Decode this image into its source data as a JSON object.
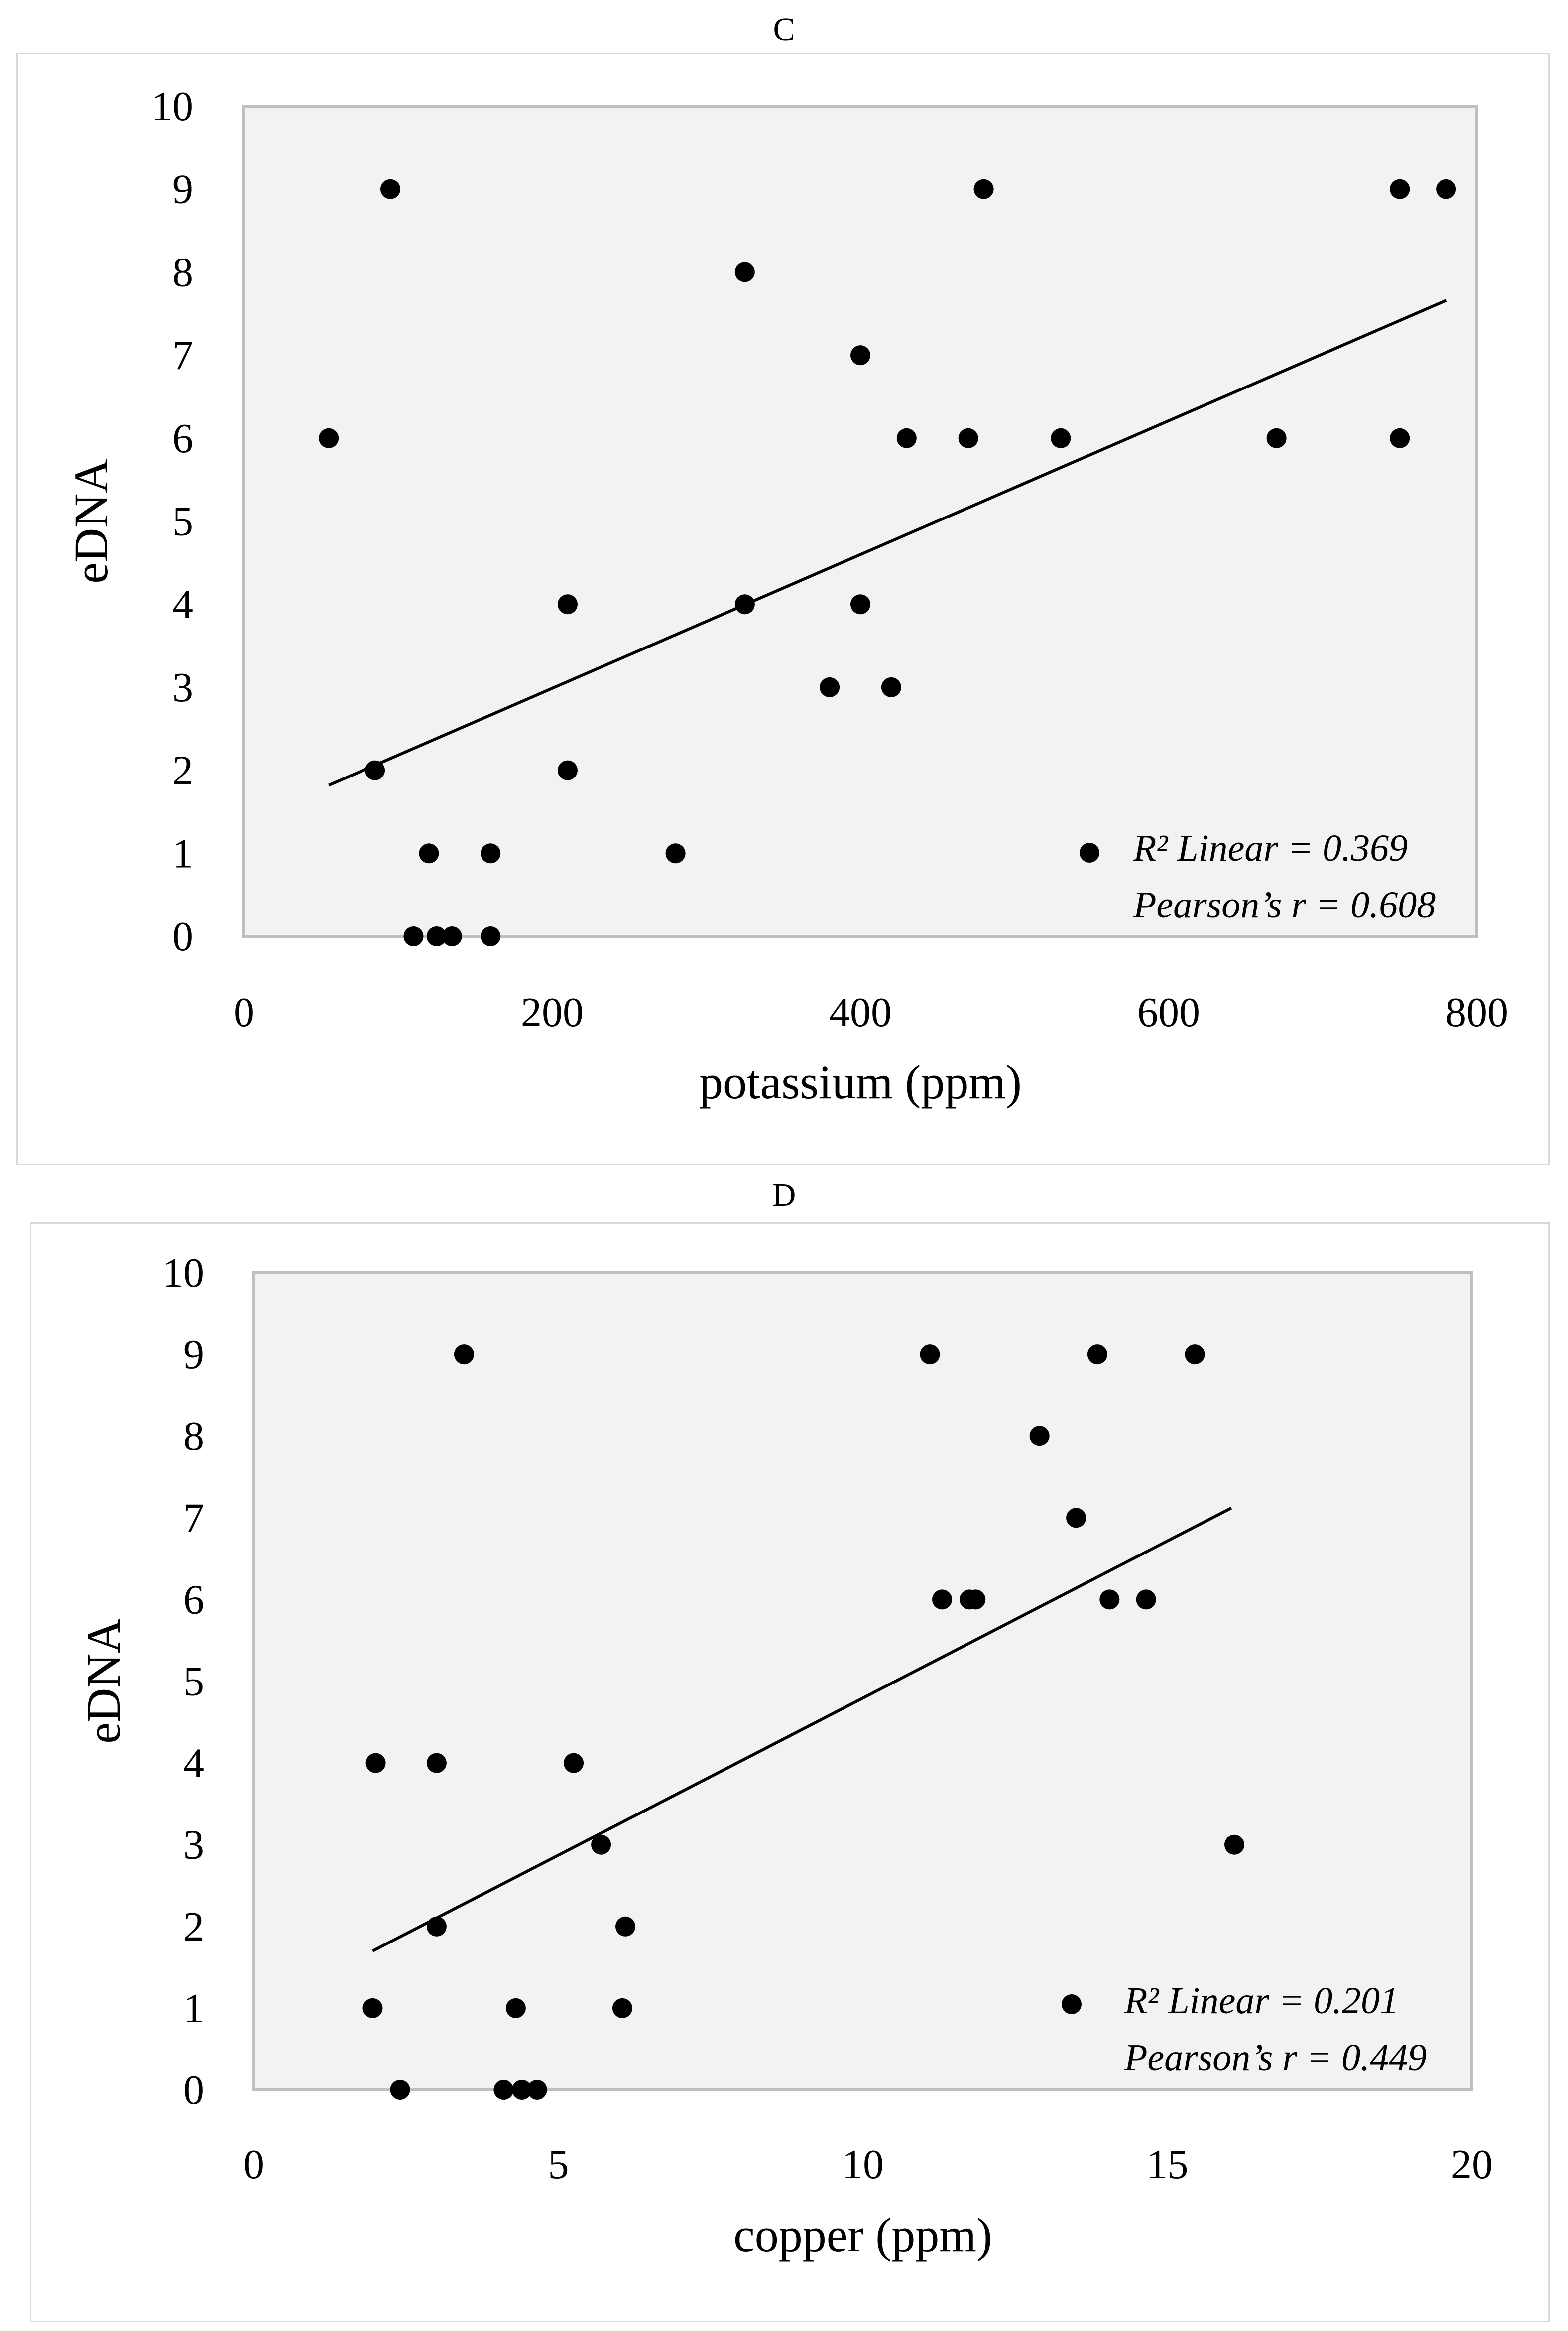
{
  "chart_data": [
    {
      "type": "scatter",
      "title": "C",
      "xlabel": "potassium (ppm)",
      "ylabel": "eDNA",
      "xlim": [
        0,
        800
      ],
      "ylim": [
        0,
        10
      ],
      "xticks": [
        0,
        200,
        400,
        600,
        800
      ],
      "yticks": [
        0,
        1,
        2,
        3,
        4,
        5,
        6,
        7,
        8,
        9,
        10
      ],
      "grid": false,
      "series": [
        {
          "name": "eDNA",
          "x": [
            55,
            95,
            85,
            120,
            110,
            125,
            135,
            160,
            160,
            210,
            210,
            280,
            325,
            325,
            380,
            400,
            400,
            420,
            430,
            470,
            480,
            530,
            670,
            750,
            750,
            780
          ],
          "y": [
            6,
            9,
            2,
            1,
            0,
            0,
            0,
            1,
            0,
            4,
            2,
            1,
            8,
            4,
            3,
            7,
            4,
            3,
            6,
            6,
            9,
            6,
            6,
            9,
            6,
            9
          ]
        }
      ],
      "trendline": {
        "x": [
          55,
          780
        ],
        "y": [
          1.82,
          7.66
        ]
      },
      "legend": {
        "position": "bottom-right",
        "r2_label": "R²  Linear = 0.369",
        "pearson_label": "Pearson’s r = 0.608"
      }
    },
    {
      "type": "scatter",
      "title": "D",
      "xlabel": "copper (ppm)",
      "ylabel": "eDNA",
      "xlim": [
        0,
        20
      ],
      "ylim": [
        0,
        10
      ],
      "xticks": [
        0,
        5,
        10,
        15,
        20
      ],
      "yticks": [
        0,
        1,
        2,
        3,
        4,
        5,
        6,
        7,
        8,
        9,
        10
      ],
      "grid": false,
      "series": [
        {
          "name": "eDNA",
          "x": [
            1.95,
            2.0,
            2.4,
            3.0,
            3.0,
            3.45,
            4.1,
            4.3,
            4.4,
            4.65,
            5.25,
            5.7,
            6.05,
            6.1,
            11.1,
            11.3,
            11.75,
            11.85,
            12.9,
            13.5,
            13.85,
            14.05,
            14.65,
            15.45,
            16.1
          ],
          "y": [
            1,
            4,
            0,
            4,
            2,
            9,
            0,
            1,
            0,
            0,
            4,
            3,
            1,
            2,
            9,
            6,
            6,
            6,
            8,
            7,
            9,
            6,
            6,
            9,
            3
          ]
        }
      ],
      "trendline": {
        "x": [
          1.95,
          16.05
        ],
        "y": [
          1.7,
          7.12
        ]
      },
      "legend": {
        "position": "bottom-right",
        "r2_label": "R²  Linear = 0.201",
        "pearson_label": "Pearson’s r = 0.449"
      }
    }
  ]
}
